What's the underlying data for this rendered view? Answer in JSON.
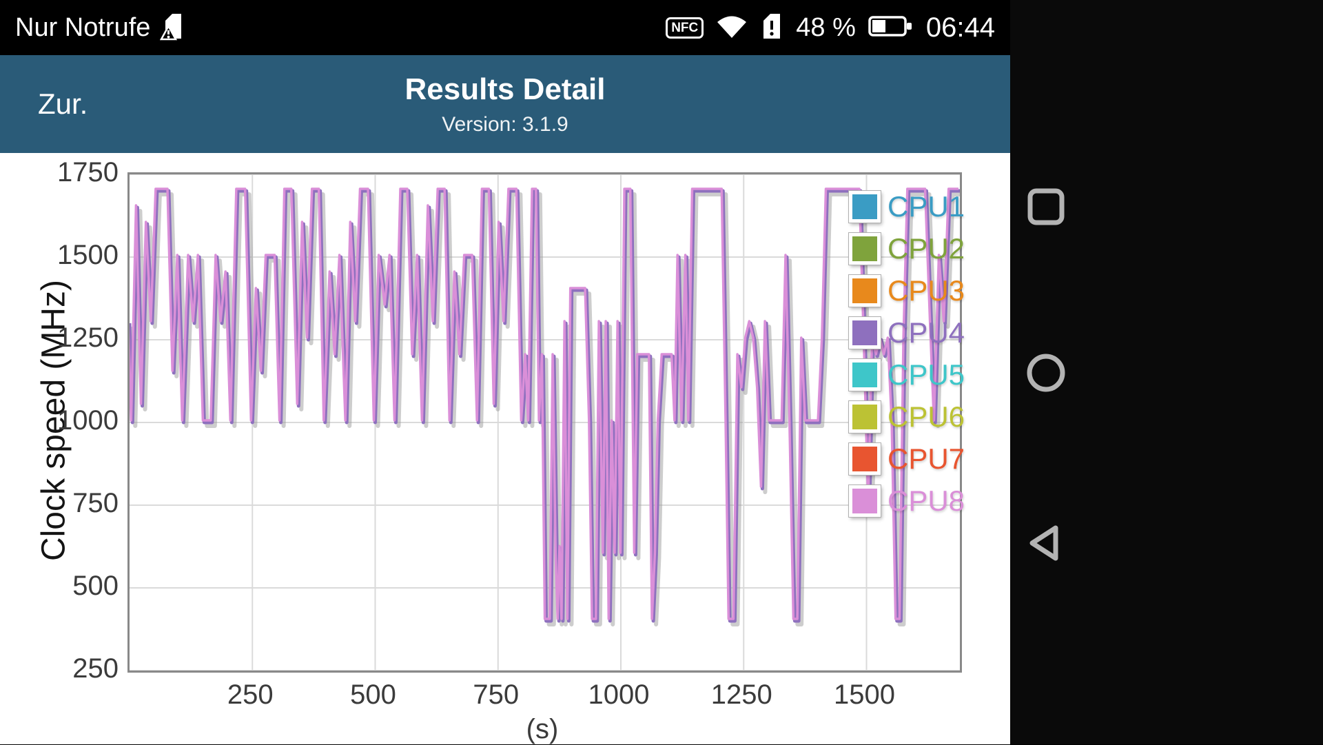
{
  "status_bar": {
    "carrier": "Nur Notrufe",
    "nfc_label": "NFC",
    "battery_percent": "48 %",
    "time": "06:44",
    "icons": [
      "sim-warning-icon",
      "nfc-icon",
      "wifi-icon",
      "sim-alert-icon",
      "battery-icon"
    ]
  },
  "header": {
    "back_label": "Zur.",
    "title": "Results Detail",
    "subtitle": "Version: 3.1.9",
    "bg_color": "#2a5b78"
  },
  "nav_bar": {
    "buttons": [
      "recents",
      "home",
      "back"
    ],
    "icon_color": "#b3b3b3"
  },
  "chart_data": {
    "type": "line",
    "ylabel": "Clock speed (MHz)",
    "xlabel_fragment": "(s)",
    "ylim": [
      250,
      1750
    ],
    "xlim": [
      0,
      1690
    ],
    "y_ticks": [
      250,
      500,
      750,
      1000,
      1250,
      1500,
      1750
    ],
    "x_ticks": [
      250,
      500,
      750,
      1000,
      1250,
      1500
    ],
    "grid": true,
    "legend_position": "top-right",
    "legend": [
      {
        "label": "CPU1",
        "color": "#3a9cc4"
      },
      {
        "label": "CPU2",
        "color": "#7fa33c"
      },
      {
        "label": "CPU3",
        "color": "#e8891c"
      },
      {
        "label": "CPU4",
        "color": "#8e70be"
      },
      {
        "label": "CPU5",
        "color": "#3ec6c9"
      },
      {
        "label": "CPU6",
        "color": "#bcc234"
      },
      {
        "label": "CPU7",
        "color": "#e85530"
      },
      {
        "label": "CPU8",
        "color": "#da8fd8"
      }
    ],
    "series": [
      {
        "name": "CPU4",
        "color": "#8e70be",
        "points": "shared"
      },
      {
        "name": "CPU8",
        "color": "#da8fd8",
        "points": "shared"
      }
    ],
    "shared_points": [
      [
        0,
        1300
      ],
      [
        6,
        1000
      ],
      [
        16,
        1650
      ],
      [
        26,
        1050
      ],
      [
        36,
        1600
      ],
      [
        46,
        1300
      ],
      [
        56,
        1700
      ],
      [
        80,
        1700
      ],
      [
        90,
        1150
      ],
      [
        100,
        1500
      ],
      [
        110,
        1000
      ],
      [
        122,
        1500
      ],
      [
        132,
        1300
      ],
      [
        142,
        1500
      ],
      [
        152,
        1000
      ],
      [
        168,
        1000
      ],
      [
        178,
        1500
      ],
      [
        188,
        1300
      ],
      [
        198,
        1450
      ],
      [
        208,
        1000
      ],
      [
        220,
        1700
      ],
      [
        238,
        1700
      ],
      [
        250,
        1000
      ],
      [
        260,
        1400
      ],
      [
        270,
        1150
      ],
      [
        280,
        1500
      ],
      [
        298,
        1500
      ],
      [
        308,
        1000
      ],
      [
        318,
        1700
      ],
      [
        332,
        1700
      ],
      [
        344,
        1050
      ],
      [
        354,
        1600
      ],
      [
        364,
        1250
      ],
      [
        374,
        1700
      ],
      [
        388,
        1700
      ],
      [
        398,
        1000
      ],
      [
        410,
        1450
      ],
      [
        420,
        1200
      ],
      [
        430,
        1500
      ],
      [
        442,
        1000
      ],
      [
        452,
        1600
      ],
      [
        462,
        1300
      ],
      [
        472,
        1700
      ],
      [
        488,
        1700
      ],
      [
        500,
        1000
      ],
      [
        510,
        1500
      ],
      [
        522,
        1350
      ],
      [
        532,
        1500
      ],
      [
        542,
        1000
      ],
      [
        554,
        1700
      ],
      [
        568,
        1700
      ],
      [
        578,
        1200
      ],
      [
        588,
        1500
      ],
      [
        598,
        1000
      ],
      [
        610,
        1650
      ],
      [
        620,
        1300
      ],
      [
        630,
        1700
      ],
      [
        644,
        1700
      ],
      [
        654,
        1000
      ],
      [
        664,
        1450
      ],
      [
        674,
        1200
      ],
      [
        684,
        1500
      ],
      [
        700,
        1500
      ],
      [
        710,
        1000
      ],
      [
        720,
        1700
      ],
      [
        734,
        1700
      ],
      [
        744,
        1050
      ],
      [
        754,
        1600
      ],
      [
        764,
        1300
      ],
      [
        774,
        1700
      ],
      [
        790,
        1700
      ],
      [
        800,
        1000
      ],
      [
        808,
        1200
      ],
      [
        814,
        1000
      ],
      [
        822,
        1700
      ],
      [
        830,
        1700
      ],
      [
        836,
        1000
      ],
      [
        842,
        1200
      ],
      [
        848,
        400
      ],
      [
        858,
        400
      ],
      [
        864,
        1200
      ],
      [
        870,
        600
      ],
      [
        874,
        400
      ],
      [
        878,
        620
      ],
      [
        882,
        400
      ],
      [
        888,
        1300
      ],
      [
        894,
        400
      ],
      [
        900,
        1400
      ],
      [
        930,
        1400
      ],
      [
        938,
        1000
      ],
      [
        944,
        400
      ],
      [
        952,
        400
      ],
      [
        958,
        1300
      ],
      [
        966,
        600
      ],
      [
        972,
        1300
      ],
      [
        978,
        400
      ],
      [
        984,
        1000
      ],
      [
        990,
        600
      ],
      [
        996,
        1300
      ],
      [
        1002,
        600
      ],
      [
        1010,
        1700
      ],
      [
        1022,
        1700
      ],
      [
        1030,
        600
      ],
      [
        1036,
        1200
      ],
      [
        1060,
        1200
      ],
      [
        1066,
        400
      ],
      [
        1072,
        600
      ],
      [
        1078,
        1000
      ],
      [
        1086,
        1200
      ],
      [
        1106,
        1200
      ],
      [
        1112,
        1000
      ],
      [
        1118,
        1500
      ],
      [
        1126,
        1000
      ],
      [
        1134,
        1500
      ],
      [
        1140,
        1000
      ],
      [
        1148,
        1700
      ],
      [
        1208,
        1700
      ],
      [
        1216,
        1000
      ],
      [
        1222,
        400
      ],
      [
        1232,
        400
      ],
      [
        1240,
        1200
      ],
      [
        1248,
        1100
      ],
      [
        1256,
        1250
      ],
      [
        1264,
        1300
      ],
      [
        1272,
        1250
      ],
      [
        1280,
        1100
      ],
      [
        1288,
        800
      ],
      [
        1296,
        1300
      ],
      [
        1304,
        1000
      ],
      [
        1330,
        1000
      ],
      [
        1338,
        1500
      ],
      [
        1346,
        1000
      ],
      [
        1354,
        400
      ],
      [
        1362,
        400
      ],
      [
        1370,
        1250
      ],
      [
        1378,
        1000
      ],
      [
        1404,
        1000
      ],
      [
        1412,
        1250
      ],
      [
        1420,
        1700
      ],
      [
        1488,
        1700
      ],
      [
        1498,
        1200
      ],
      [
        1506,
        750
      ],
      [
        1514,
        1250
      ],
      [
        1522,
        1200
      ],
      [
        1530,
        1250
      ],
      [
        1538,
        1200
      ],
      [
        1546,
        1250
      ],
      [
        1554,
        1000
      ],
      [
        1562,
        400
      ],
      [
        1570,
        400
      ],
      [
        1578,
        1250
      ],
      [
        1586,
        1700
      ],
      [
        1622,
        1700
      ],
      [
        1632,
        1300
      ],
      [
        1640,
        1000
      ],
      [
        1650,
        1500
      ],
      [
        1660,
        1300
      ],
      [
        1670,
        1700
      ],
      [
        1690,
        1700
      ]
    ]
  }
}
